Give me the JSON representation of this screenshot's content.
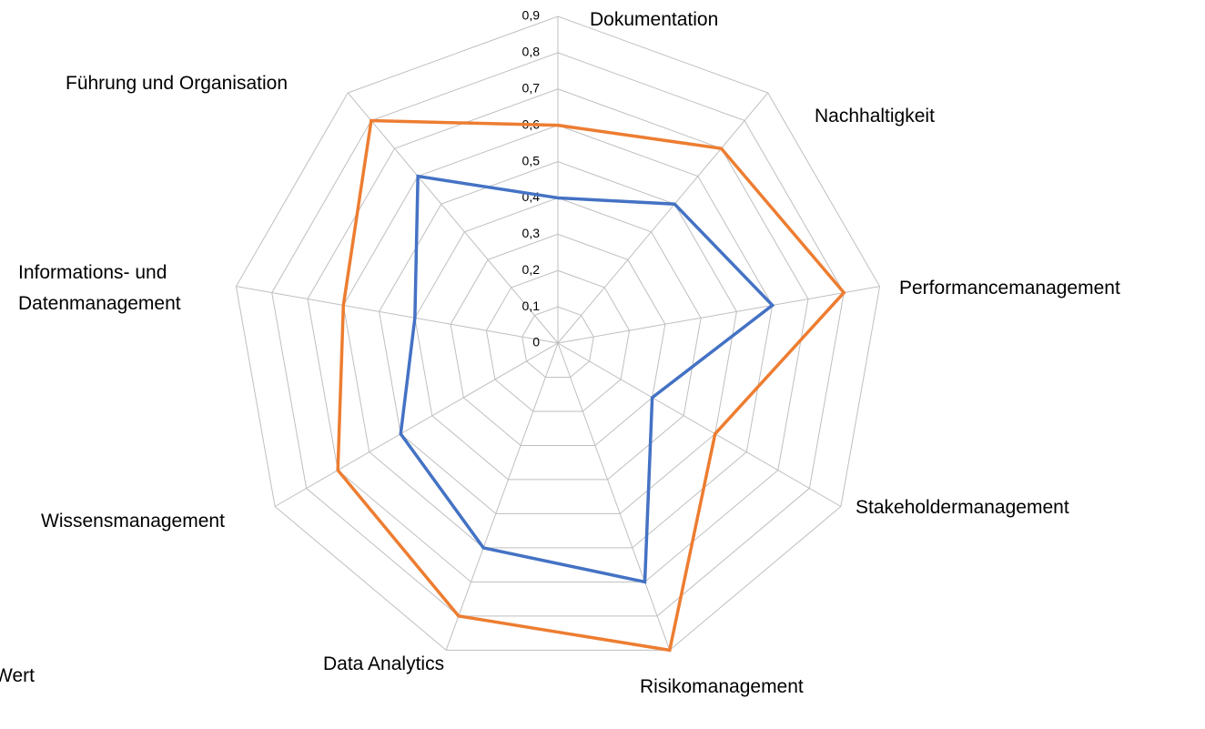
{
  "chart_data": {
    "type": "radar",
    "categories": [
      "Dokumentation",
      "Nachhaltigkeit",
      "Performancemanagement",
      "Stakeholdermanagement",
      "Risikomanagement",
      "Data Analytics",
      "Wissensmanagement",
      "Informations- und Datenmanagement",
      "Führung und Organisation"
    ],
    "series": [
      {
        "color": "#ed7d31",
        "values": [
          0.6,
          0.7,
          0.8,
          0.5,
          0.9,
          0.8,
          0.7,
          0.6,
          0.8
        ]
      },
      {
        "color": "#4472c4",
        "values": [
          0.4,
          0.5,
          0.6,
          0.3,
          0.7,
          0.6,
          0.5,
          0.4,
          0.6
        ]
      }
    ],
    "ylim": [
      0,
      0.9
    ],
    "yticks": [
      0,
      {
        "value": 0.1,
        "label": "0,1"
      },
      {
        "value": 0.2,
        "label": "0,2"
      },
      {
        "value": 0.3,
        "label": "0,3"
      },
      {
        "value": 0.4,
        "label": "0,4"
      },
      {
        "value": 0.5,
        "label": "0,5"
      },
      {
        "value": 0.6,
        "label": "0,6"
      },
      {
        "value": 0.7,
        "label": "0,7"
      },
      {
        "value": 0.8,
        "label": "0,8"
      },
      {
        "value": 0.9,
        "label": "0,9"
      }
    ],
    "grid": true,
    "legend_text": "Wert"
  }
}
